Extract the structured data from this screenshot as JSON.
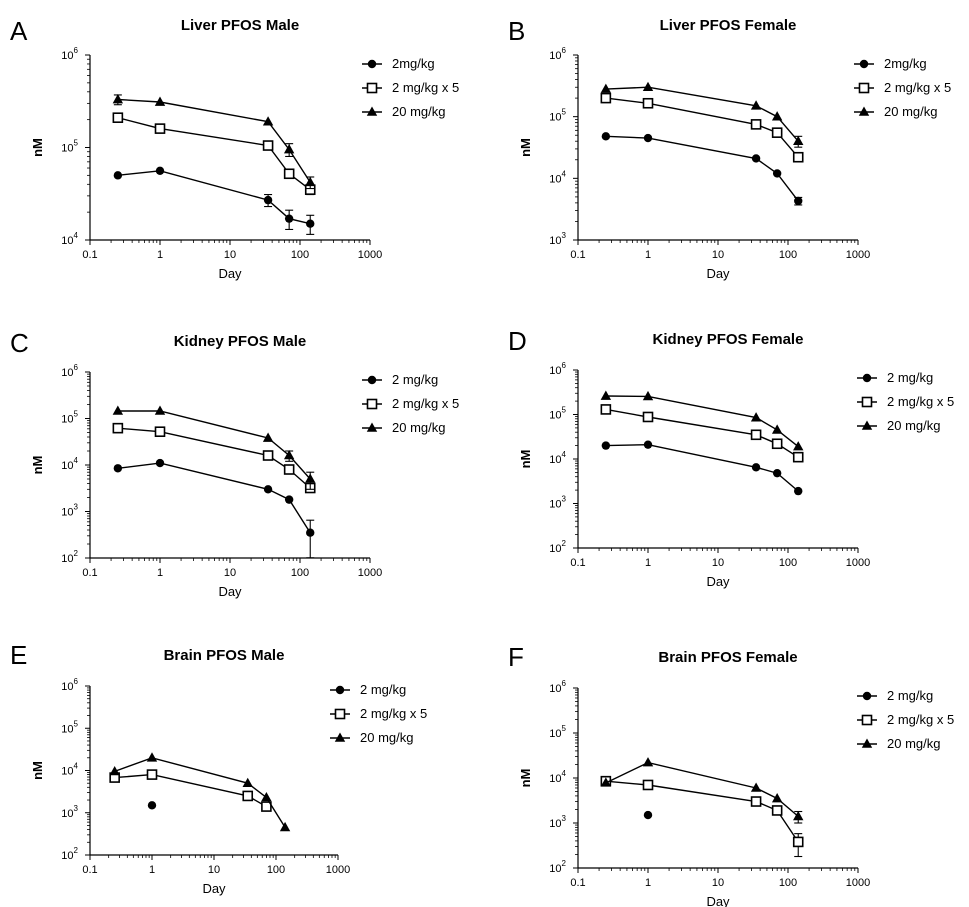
{
  "chart_data": [
    {
      "panel": "A",
      "type": "line",
      "title": "Liver PFOS Male",
      "xlabel": "Day",
      "ylabel": "nM",
      "xscale": "log",
      "yscale": "log",
      "xlim": [
        0.1,
        1000
      ],
      "ylim": [
        10000,
        1000000
      ],
      "x_ticks": [
        "0.1",
        "1",
        "10",
        "100",
        "1000"
      ],
      "y_ticks": [
        {
          "base": "10",
          "exp": "4"
        },
        {
          "base": "10",
          "exp": "5"
        },
        {
          "base": "10",
          "exp": "6"
        }
      ],
      "legend": "top-right",
      "series": [
        {
          "name": "2mg/kg",
          "marker": "circle",
          "x": [
            0.25,
            1,
            35,
            70,
            140
          ],
          "y": [
            50000,
            56000,
            27000,
            17000,
            15000
          ],
          "err": [
            0,
            0,
            4000,
            4000,
            3500
          ]
        },
        {
          "name": "2 mg/kg x 5",
          "marker": "square-open",
          "x": [
            0.25,
            1,
            35,
            70,
            140
          ],
          "y": [
            210000,
            160000,
            105000,
            52000,
            35000
          ],
          "err": [
            15000,
            0,
            0,
            0,
            4000
          ]
        },
        {
          "name": "20 mg/kg",
          "marker": "triangle",
          "x": [
            0.25,
            1,
            35,
            70,
            140
          ],
          "y": [
            330000,
            310000,
            190000,
            95000,
            42000
          ],
          "err": [
            40000,
            0,
            0,
            15000,
            6000
          ]
        }
      ]
    },
    {
      "panel": "B",
      "type": "line",
      "title": "Liver PFOS Female",
      "xlabel": "Day",
      "ylabel": "nM",
      "xscale": "log",
      "yscale": "log",
      "xlim": [
        0.1,
        1000
      ],
      "ylim": [
        1000,
        1000000
      ],
      "x_ticks": [
        "0.1",
        "1",
        "10",
        "100",
        "1000"
      ],
      "y_ticks": [
        {
          "base": "10",
          "exp": "3"
        },
        {
          "base": "10",
          "exp": "4"
        },
        {
          "base": "10",
          "exp": "5"
        },
        {
          "base": "10",
          "exp": "6"
        }
      ],
      "legend": "top-right",
      "series": [
        {
          "name": "2mg/kg",
          "marker": "circle",
          "x": [
            0.25,
            1,
            35,
            70,
            140
          ],
          "y": [
            48000,
            45000,
            21000,
            12000,
            4300
          ],
          "err": [
            0,
            0,
            0,
            0,
            600
          ]
        },
        {
          "name": "2 mg/kg x 5",
          "marker": "square-open",
          "x": [
            0.25,
            1,
            35,
            70,
            140
          ],
          "y": [
            200000,
            165000,
            75000,
            55000,
            22000
          ],
          "err": [
            20000,
            0,
            0,
            0,
            0
          ]
        },
        {
          "name": "20 mg/kg",
          "marker": "triangle",
          "x": [
            0.25,
            1,
            35,
            70,
            140
          ],
          "y": [
            280000,
            300000,
            150000,
            100000,
            40000
          ],
          "err": [
            0,
            0,
            0,
            0,
            8000
          ]
        }
      ]
    },
    {
      "panel": "C",
      "type": "line",
      "title": "Kidney PFOS Male",
      "xlabel": "Day",
      "ylabel": "nM",
      "xscale": "log",
      "yscale": "log",
      "xlim": [
        0.1,
        1000
      ],
      "ylim": [
        100,
        1000000
      ],
      "x_ticks": [
        "0.1",
        "1",
        "10",
        "100",
        "1000"
      ],
      "y_ticks": [
        {
          "base": "10",
          "exp": "2"
        },
        {
          "base": "10",
          "exp": "3"
        },
        {
          "base": "10",
          "exp": "4"
        },
        {
          "base": "10",
          "exp": "5"
        },
        {
          "base": "10",
          "exp": "6"
        }
      ],
      "legend": "top-right",
      "series": [
        {
          "name": "2 mg/kg",
          "marker": "circle",
          "x": [
            0.25,
            1,
            35,
            70,
            140
          ],
          "y": [
            8500,
            11000,
            3000,
            1800,
            350
          ],
          "err": [
            0,
            0,
            0,
            0,
            300
          ]
        },
        {
          "name": "2 mg/kg x 5",
          "marker": "square-open",
          "x": [
            0.25,
            1,
            35,
            70,
            140
          ],
          "y": [
            62000,
            52000,
            16000,
            8000,
            3200
          ],
          "err": [
            0,
            0,
            0,
            0,
            0
          ]
        },
        {
          "name": "20 mg/kg",
          "marker": "triangle",
          "x": [
            0.25,
            1,
            35,
            70,
            140
          ],
          "y": [
            145000,
            145000,
            38000,
            16000,
            5000
          ],
          "err": [
            0,
            0,
            0,
            4000,
            2000
          ]
        }
      ]
    },
    {
      "panel": "D",
      "type": "line",
      "title": "Kidney PFOS Female",
      "xlabel": "Day",
      "ylabel": "nM",
      "xscale": "log",
      "yscale": "log",
      "xlim": [
        0.1,
        1000
      ],
      "ylim": [
        100,
        1000000
      ],
      "x_ticks": [
        "0.1",
        "1",
        "10",
        "100",
        "1000"
      ],
      "y_ticks": [
        {
          "base": "10",
          "exp": "2"
        },
        {
          "base": "10",
          "exp": "3"
        },
        {
          "base": "10",
          "exp": "4"
        },
        {
          "base": "10",
          "exp": "5"
        },
        {
          "base": "10",
          "exp": "6"
        }
      ],
      "legend": "top-right",
      "series": [
        {
          "name": "2 mg/kg",
          "marker": "circle",
          "x": [
            0.25,
            1,
            35,
            70,
            140
          ],
          "y": [
            20000,
            21000,
            6500,
            4800,
            1900
          ],
          "err": [
            0,
            0,
            0,
            0,
            0
          ]
        },
        {
          "name": "2 mg/kg x 5",
          "marker": "square-open",
          "x": [
            0.25,
            1,
            35,
            70,
            140
          ],
          "y": [
            130000,
            88000,
            35000,
            22000,
            11000
          ],
          "err": [
            0,
            0,
            0,
            0,
            0
          ]
        },
        {
          "name": "20 mg/kg",
          "marker": "triangle",
          "x": [
            0.25,
            1,
            35,
            70,
            140
          ],
          "y": [
            260000,
            255000,
            85000,
            45000,
            19000
          ],
          "err": [
            0,
            0,
            0,
            0,
            0
          ]
        }
      ]
    },
    {
      "panel": "E",
      "type": "line",
      "title": "Brain PFOS Male",
      "xlabel": "Day",
      "ylabel": "nM",
      "xscale": "log",
      "yscale": "log",
      "xlim": [
        0.1,
        1000
      ],
      "ylim": [
        100,
        1000000
      ],
      "x_ticks": [
        "0.1",
        "1",
        "10",
        "100",
        "1000"
      ],
      "y_ticks": [
        {
          "base": "10",
          "exp": "2"
        },
        {
          "base": "10",
          "exp": "3"
        },
        {
          "base": "10",
          "exp": "4"
        },
        {
          "base": "10",
          "exp": "5"
        },
        {
          "base": "10",
          "exp": "6"
        }
      ],
      "legend": "top-right",
      "series": [
        {
          "name": "2 mg/kg",
          "marker": "circle",
          "x": [
            1
          ],
          "y": [
            1500
          ],
          "err": [
            0
          ]
        },
        {
          "name": "2 mg/kg x 5",
          "marker": "square-open",
          "x": [
            0.25,
            1,
            35,
            70
          ],
          "y": [
            6800,
            8000,
            2500,
            1400
          ],
          "err": [
            0,
            0,
            0,
            0
          ]
        },
        {
          "name": "20 mg/kg",
          "marker": "triangle",
          "x": [
            0.25,
            1,
            35,
            70,
            140
          ],
          "y": [
            9500,
            20000,
            5000,
            2300,
            450
          ],
          "err": [
            0,
            0,
            0,
            0,
            0
          ]
        }
      ]
    },
    {
      "panel": "F",
      "type": "line",
      "title": "Brain PFOS Female",
      "xlabel": "Day",
      "ylabel": "nM",
      "xscale": "log",
      "yscale": "log",
      "xlim": [
        0.1,
        1000
      ],
      "ylim": [
        100,
        1000000
      ],
      "x_ticks": [
        "0.1",
        "1",
        "10",
        "100",
        "1000"
      ],
      "y_ticks": [
        {
          "base": "10",
          "exp": "2"
        },
        {
          "base": "10",
          "exp": "3"
        },
        {
          "base": "10",
          "exp": "4"
        },
        {
          "base": "10",
          "exp": "5"
        },
        {
          "base": "10",
          "exp": "6"
        }
      ],
      "legend": "top-right",
      "series": [
        {
          "name": "2 mg/kg",
          "marker": "circle",
          "x": [
            1
          ],
          "y": [
            1500
          ],
          "err": [
            0
          ]
        },
        {
          "name": "2 mg/kg x 5",
          "marker": "square-open",
          "x": [
            0.25,
            1,
            35,
            70,
            140
          ],
          "y": [
            8500,
            7000,
            3000,
            1900,
            380
          ],
          "err": [
            0,
            0,
            0,
            0,
            200
          ]
        },
        {
          "name": "20 mg/kg",
          "marker": "triangle",
          "x": [
            0.25,
            1,
            35,
            70,
            140
          ],
          "y": [
            7800,
            22000,
            6000,
            3500,
            1400
          ],
          "err": [
            0,
            0,
            0,
            0,
            400
          ]
        }
      ]
    }
  ]
}
